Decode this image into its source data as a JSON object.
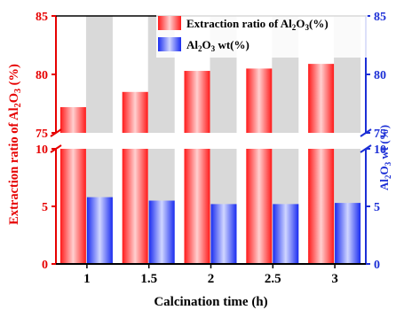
{
  "chart_data": {
    "type": "bar",
    "xlabel": "Calcination  time (h)",
    "categories": [
      "1",
      "1.5",
      "2",
      "2.5",
      "3"
    ],
    "ylabel_left": {
      "main": "Extraction ratio of Al",
      "sub1": "2",
      "mid": "O",
      "sub2": "3",
      "end": " (%)"
    },
    "ylabel_right": {
      "main": "Al",
      "sub1": "2",
      "mid": "O",
      "sub2": "3",
      "end": " wt (%)"
    },
    "left_axis": {
      "broken": true,
      "lower_range": [
        0,
        10
      ],
      "upper_range": [
        75,
        85
      ],
      "lower_ticks": [
        "0",
        "5",
        "10"
      ],
      "upper_ticks": [
        "75",
        "80",
        "85"
      ]
    },
    "right_axis": {
      "broken": true,
      "lower_range": [
        0,
        10
      ],
      "upper_range": [
        75,
        85
      ],
      "lower_ticks": [
        "0",
        "5",
        "10"
      ],
      "upper_ticks": [
        "75",
        "80",
        "85"
      ]
    },
    "series": [
      {
        "name": "Extraction ratio of Al2O3(%)",
        "legend": {
          "main": "Extraction ratio of Al",
          "sub1": "2",
          "mid": "O",
          "sub2": "3",
          "end": "(%)"
        },
        "axis": "left",
        "color": "#ff2a2a",
        "values": [
          77.2,
          78.5,
          80.3,
          80.5,
          80.9
        ]
      },
      {
        "name": "Al2O3 wt(%)",
        "legend": {
          "main": "Al",
          "sub1": "2",
          "mid": "O",
          "sub2": "3",
          "end": " wt(%)"
        },
        "axis": "right",
        "color": "#2b3df0",
        "values": [
          5.8,
          5.5,
          5.2,
          5.2,
          5.3
        ]
      }
    ],
    "background_bars_color": "#d9d9d9",
    "legend_position": "top-right",
    "grid": false
  }
}
